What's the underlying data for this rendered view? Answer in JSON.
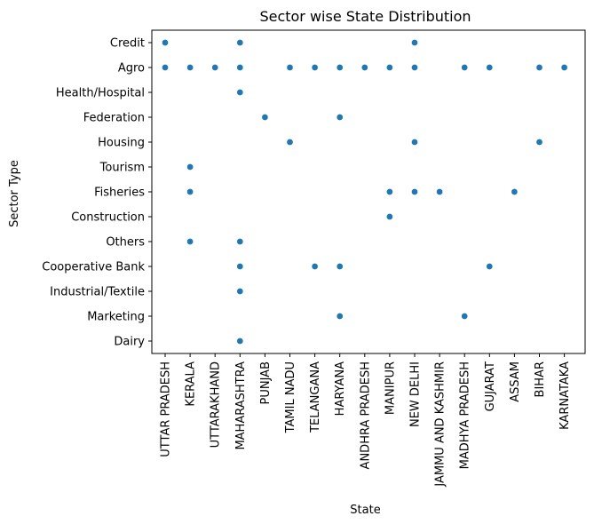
{
  "chart_data": {
    "type": "scatter",
    "title": "Sector wise State Distribution",
    "xlabel": "State",
    "ylabel": "Sector Type",
    "x_categories": [
      "UTTAR PRADESH",
      "KERALA",
      "UTTARAKHAND",
      "MAHARASHTRA",
      "PUNJAB",
      "TAMIL NADU",
      "TELANGANA",
      "HARYANA",
      "ANDHRA PRADESH",
      "MANIPUR",
      "NEW DELHI",
      "JAMMU AND KASHMIR",
      "MADHYA PRADESH",
      "GUJARAT",
      "ASSAM",
      "BIHAR",
      "KARNATAKA"
    ],
    "y_categories": [
      "Credit",
      "Agro",
      "Health/Hospital",
      "Federation",
      "Housing",
      "Tourism",
      "Fisheries",
      "Construction",
      "Others",
      "Cooperative Bank",
      "Industrial/Textile",
      "Marketing",
      "Dairy"
    ],
    "points": [
      {
        "x": "UTTAR PRADESH",
        "y": "Credit"
      },
      {
        "x": "MAHARASHTRA",
        "y": "Credit"
      },
      {
        "x": "NEW DELHI",
        "y": "Credit"
      },
      {
        "x": "UTTAR PRADESH",
        "y": "Agro"
      },
      {
        "x": "KERALA",
        "y": "Agro"
      },
      {
        "x": "UTTARAKHAND",
        "y": "Agro"
      },
      {
        "x": "MAHARASHTRA",
        "y": "Agro"
      },
      {
        "x": "TAMIL NADU",
        "y": "Agro"
      },
      {
        "x": "TELANGANA",
        "y": "Agro"
      },
      {
        "x": "HARYANA",
        "y": "Agro"
      },
      {
        "x": "ANDHRA PRADESH",
        "y": "Agro"
      },
      {
        "x": "MANIPUR",
        "y": "Agro"
      },
      {
        "x": "NEW DELHI",
        "y": "Agro"
      },
      {
        "x": "MADHYA PRADESH",
        "y": "Agro"
      },
      {
        "x": "GUJARAT",
        "y": "Agro"
      },
      {
        "x": "BIHAR",
        "y": "Agro"
      },
      {
        "x": "KARNATAKA",
        "y": "Agro"
      },
      {
        "x": "MAHARASHTRA",
        "y": "Health/Hospital"
      },
      {
        "x": "PUNJAB",
        "y": "Federation"
      },
      {
        "x": "HARYANA",
        "y": "Federation"
      },
      {
        "x": "TAMIL NADU",
        "y": "Housing"
      },
      {
        "x": "NEW DELHI",
        "y": "Housing"
      },
      {
        "x": "BIHAR",
        "y": "Housing"
      },
      {
        "x": "KERALA",
        "y": "Tourism"
      },
      {
        "x": "KERALA",
        "y": "Fisheries"
      },
      {
        "x": "MANIPUR",
        "y": "Fisheries"
      },
      {
        "x": "NEW DELHI",
        "y": "Fisheries"
      },
      {
        "x": "JAMMU AND KASHMIR",
        "y": "Fisheries"
      },
      {
        "x": "ASSAM",
        "y": "Fisheries"
      },
      {
        "x": "MANIPUR",
        "y": "Construction"
      },
      {
        "x": "KERALA",
        "y": "Others"
      },
      {
        "x": "MAHARASHTRA",
        "y": "Others"
      },
      {
        "x": "MAHARASHTRA",
        "y": "Cooperative Bank"
      },
      {
        "x": "TELANGANA",
        "y": "Cooperative Bank"
      },
      {
        "x": "HARYANA",
        "y": "Cooperative Bank"
      },
      {
        "x": "GUJARAT",
        "y": "Cooperative Bank"
      },
      {
        "x": "MAHARASHTRA",
        "y": "Industrial/Textile"
      },
      {
        "x": "HARYANA",
        "y": "Marketing"
      },
      {
        "x": "MADHYA PRADESH",
        "y": "Marketing"
      },
      {
        "x": "MAHARASHTRA",
        "y": "Dairy"
      }
    ],
    "marker_color": "#1f77b4",
    "grid": false,
    "legend": "none"
  }
}
